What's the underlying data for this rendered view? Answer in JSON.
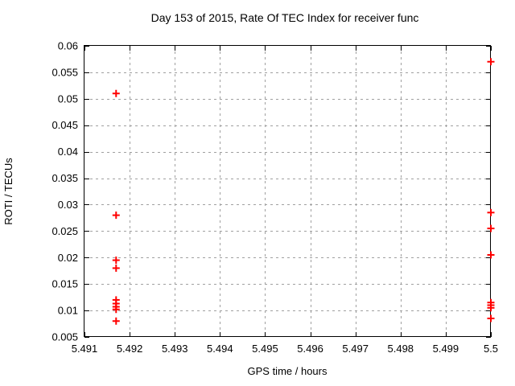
{
  "chart_data": {
    "type": "scatter",
    "title": "Day 153 of 2015, Rate Of TEC Index for receiver func",
    "xlabel": "GPS time / hours",
    "ylabel": "ROTI / TECUs",
    "xlim": [
      5.491,
      5.5
    ],
    "ylim": [
      0.005,
      0.06
    ],
    "xticks": {
      "values": [
        5.491,
        5.492,
        5.493,
        5.494,
        5.495,
        5.496,
        5.497,
        5.498,
        5.499,
        5.5
      ],
      "labels": [
        "5.491",
        "5.492",
        "5.493",
        "5.494",
        "5.495",
        "5.496",
        "5.497",
        "5.498",
        "5.499",
        "5.5"
      ]
    },
    "yticks": {
      "values": [
        0.005,
        0.01,
        0.015,
        0.02,
        0.025,
        0.03,
        0.035,
        0.04,
        0.045,
        0.05,
        0.055,
        0.06
      ],
      "labels": [
        "0.005",
        "0.01",
        "0.015",
        "0.02",
        "0.025",
        "0.03",
        "0.035",
        "0.04",
        "0.045",
        "0.05",
        "0.055",
        "0.06"
      ]
    },
    "grid": true,
    "legend_position": "none",
    "marker": "plus",
    "marker_color": "#ff0000",
    "grid_color": "#a0a0a0",
    "axis_color": "#000000",
    "series": [
      {
        "name": "ROTI",
        "points": [
          [
            5.4917,
            0.051
          ],
          [
            5.4917,
            0.028
          ],
          [
            5.4917,
            0.0195
          ],
          [
            5.4917,
            0.018
          ],
          [
            5.4917,
            0.012
          ],
          [
            5.4917,
            0.0113
          ],
          [
            5.4917,
            0.0107
          ],
          [
            5.4917,
            0.0102
          ],
          [
            5.4917,
            0.008
          ],
          [
            5.5,
            0.057
          ],
          [
            5.5,
            0.0285
          ],
          [
            5.5,
            0.0255
          ],
          [
            5.5,
            0.0205
          ],
          [
            5.5,
            0.0115
          ],
          [
            5.5,
            0.011
          ],
          [
            5.5,
            0.0105
          ],
          [
            5.5,
            0.0085
          ]
        ]
      }
    ]
  }
}
